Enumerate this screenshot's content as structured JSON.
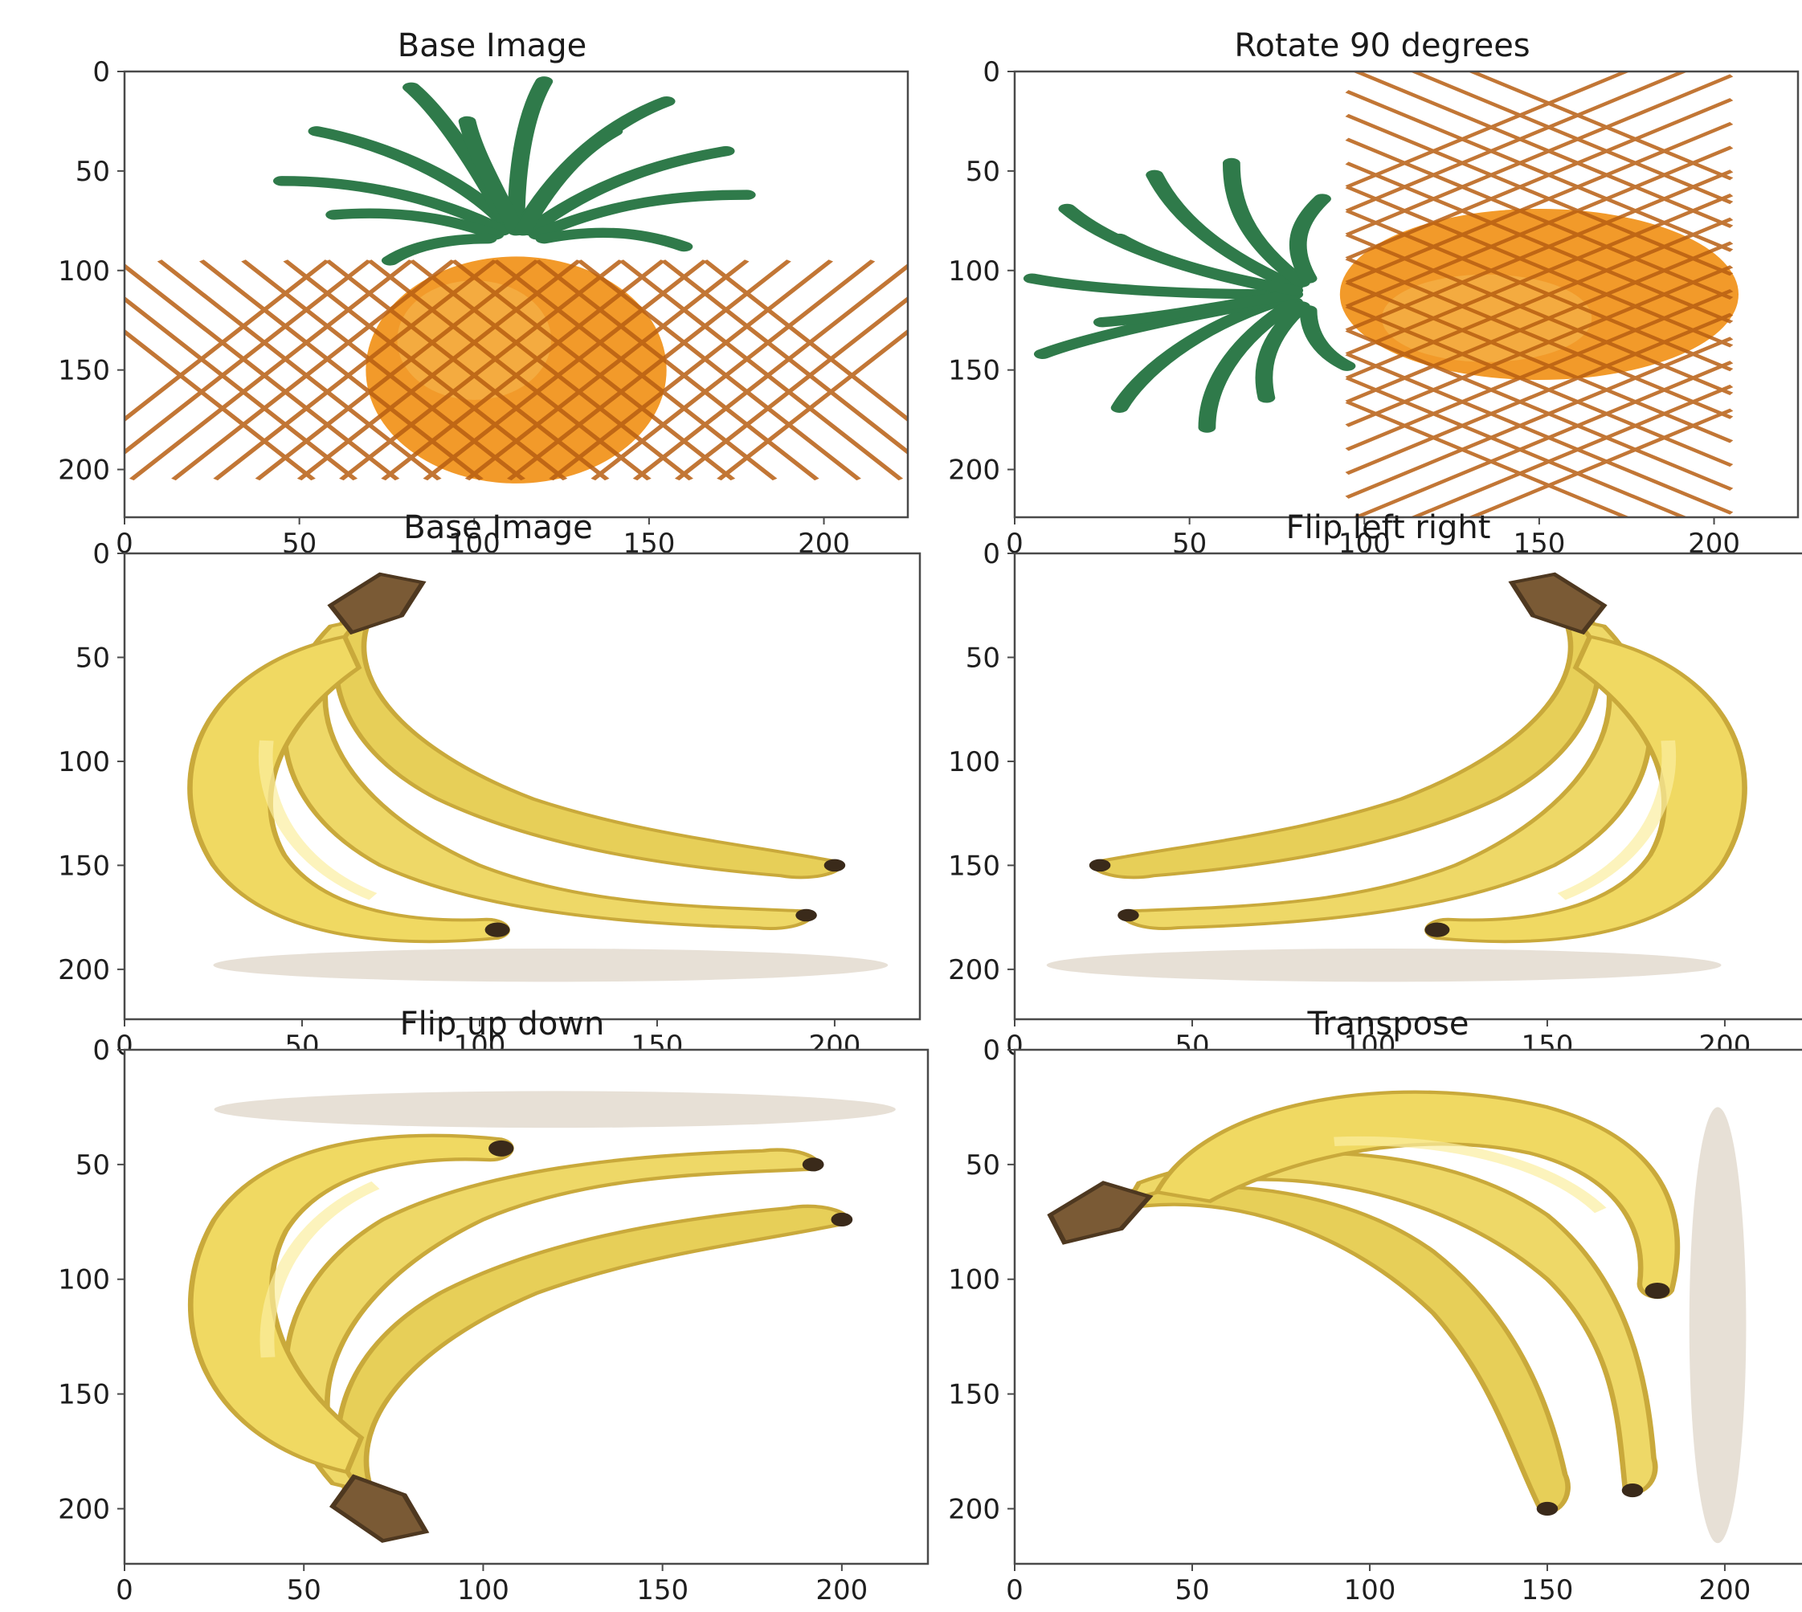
{
  "figure": {
    "panels": [
      {
        "title": "Base Image",
        "subject": "pineapple",
        "transform": "none"
      },
      {
        "title": "Rotate 90 degrees",
        "subject": "pineapple",
        "transform": "rotate90"
      },
      {
        "title": "Base Image",
        "subject": "banana-bunch",
        "transform": "none"
      },
      {
        "title": "Flip left right",
        "subject": "banana-bunch",
        "transform": "flip-left-right"
      },
      {
        "title": "Flip up down",
        "subject": "banana-bunch",
        "transform": "flip-up-down"
      },
      {
        "title": "Transpose",
        "subject": "banana-bunch",
        "transform": "transpose"
      }
    ]
  },
  "chart_data": [
    {
      "type": "image",
      "title": "Base Image",
      "image": "pineapple",
      "xlim": [
        0,
        224
      ],
      "ylim": [
        224,
        0
      ],
      "xticks": [
        0,
        50,
        100,
        150,
        200
      ],
      "yticks": [
        0,
        50,
        100,
        150,
        200
      ],
      "grid": false
    },
    {
      "type": "image",
      "title": "Rotate 90 degrees",
      "image": "pineapple rotated 90 degrees",
      "xlim": [
        0,
        224
      ],
      "ylim": [
        224,
        0
      ],
      "xticks": [
        0,
        50,
        100,
        150,
        200
      ],
      "yticks": [
        0,
        50,
        100,
        150,
        200
      ],
      "grid": false
    },
    {
      "type": "image",
      "title": "Base Image",
      "image": "banana bunch",
      "xlim": [
        0,
        224
      ],
      "ylim": [
        224,
        0
      ],
      "xticks": [
        0,
        50,
        100,
        150,
        200
      ],
      "yticks": [
        0,
        50,
        100,
        150,
        200
      ],
      "grid": false
    },
    {
      "type": "image",
      "title": "Flip left right",
      "image": "banana bunch flipped left-right",
      "xlim": [
        0,
        224
      ],
      "ylim": [
        224,
        0
      ],
      "xticks": [
        0,
        50,
        100,
        150,
        200
      ],
      "yticks": [
        0,
        50,
        100,
        150,
        200
      ],
      "grid": false
    },
    {
      "type": "image",
      "title": "Flip up down",
      "image": "banana bunch flipped up-down",
      "xlim": [
        0,
        224
      ],
      "ylim": [
        224,
        0
      ],
      "xticks": [
        0,
        50,
        100,
        150,
        200
      ],
      "yticks": [
        0,
        50,
        100,
        150,
        200
      ],
      "grid": false
    },
    {
      "type": "image",
      "title": "Transpose",
      "image": "banana bunch transposed",
      "xlim": [
        0,
        224
      ],
      "ylim": [
        224,
        0
      ],
      "xticks": [
        0,
        50,
        100,
        150,
        200
      ],
      "yticks": [
        0,
        50,
        100,
        150,
        200
      ],
      "grid": false
    }
  ],
  "colors": {
    "pineapple_body": "#f29a2a",
    "pineapple_pattern": "#b85f12",
    "pineapple_leaf": "#2f7a4a",
    "banana_yellow": "#e7cf58",
    "banana_shade": "#c9a93b",
    "banana_stem": "#7a5a35",
    "axis_frame": "#4a4a4a",
    "text": "#1f1f1f"
  }
}
